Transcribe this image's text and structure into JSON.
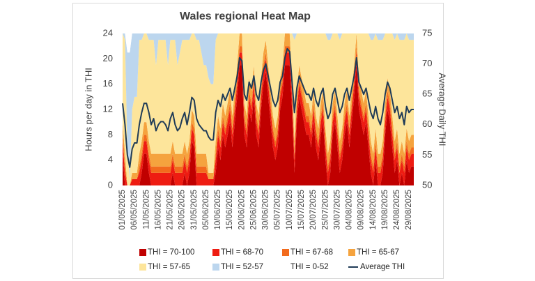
{
  "chart_data": {
    "type": "area",
    "title": "Wales regional Heat Map",
    "y_label": "Hours per day in THI",
    "y2_label": "Average Daily THI",
    "ylim": [
      0,
      24
    ],
    "yticks": [
      0,
      4,
      8,
      12,
      16,
      20,
      24
    ],
    "y2lim": [
      50,
      75
    ],
    "y2ticks": [
      50,
      55,
      60,
      65,
      70,
      75
    ],
    "categories": [
      "01/05/2025",
      null,
      null,
      null,
      null,
      "06/05/2025",
      null,
      null,
      null,
      null,
      "11/05/2025",
      null,
      null,
      null,
      null,
      "16/05/2025",
      null,
      null,
      null,
      null,
      "21/05/2025",
      null,
      null,
      null,
      null,
      "26/05/2025",
      null,
      null,
      null,
      null,
      "31/05/2025",
      null,
      null,
      null,
      null,
      "05/06/2025",
      null,
      null,
      null,
      null,
      "10/06/2025",
      null,
      null,
      null,
      null,
      "15/06/2025",
      null,
      null,
      null,
      null,
      "20/06/2025",
      null,
      null,
      null,
      null,
      "25/06/2025",
      null,
      null,
      null,
      null,
      "30/06/2025",
      null,
      null,
      null,
      null,
      "05/07/2025",
      null,
      null,
      null,
      null,
      "10/07/2025",
      null,
      null,
      null,
      null,
      "15/07/2025",
      null,
      null,
      null,
      null,
      "20/07/2025",
      null,
      null,
      null,
      null,
      "25/07/2025",
      null,
      null,
      null,
      null,
      "30/07/2025",
      null,
      null,
      null,
      null,
      "04/08/2025",
      null,
      null,
      null,
      null,
      "09/08/2025",
      null,
      null,
      null,
      null,
      "14/08/2025",
      null,
      null,
      null,
      null,
      "19/08/2025",
      null,
      null,
      null,
      null,
      "24/08/2025",
      null,
      null,
      null,
      null,
      "29/08/2025",
      null,
      null
    ],
    "series": [
      {
        "name": "THI = 70-100",
        "color": "#c00000",
        "values": [
          5,
          0,
          0,
          0,
          0,
          0,
          0,
          0,
          2,
          5,
          5,
          2,
          0,
          0,
          0,
          0,
          0,
          0,
          0,
          0,
          0,
          2,
          0,
          0,
          0,
          0,
          2,
          0,
          2,
          7,
          6,
          0,
          0,
          0,
          0,
          0,
          0,
          0,
          0,
          2,
          6,
          4,
          8,
          6,
          8,
          10,
          6,
          10,
          14,
          19,
          19,
          8,
          6,
          12,
          10,
          14,
          8,
          6,
          12,
          16,
          18,
          14,
          10,
          6,
          4,
          6,
          12,
          14,
          19,
          19,
          19,
          12,
          2,
          10,
          14,
          12,
          10,
          8,
          8,
          6,
          10,
          6,
          4,
          8,
          10,
          4,
          0,
          2,
          8,
          10,
          6,
          2,
          4,
          8,
          10,
          6,
          10,
          14,
          19,
          12,
          10,
          8,
          10,
          6,
          2,
          0,
          4,
          0,
          0,
          2,
          8,
          12,
          10,
          6,
          2,
          4,
          0,
          2,
          0,
          4,
          2,
          3,
          3
        ]
      },
      {
        "name": "THI = 68-70",
        "color": "#ee1c12",
        "values": [
          2,
          2,
          0,
          0,
          1,
          1,
          1,
          2,
          2,
          2,
          2,
          2,
          2,
          2,
          2,
          2,
          2,
          2,
          2,
          2,
          2,
          2,
          2,
          2,
          2,
          2,
          2,
          2,
          2,
          2,
          2,
          2,
          2,
          2,
          2,
          2,
          1,
          1,
          1,
          2,
          2,
          2,
          2,
          2,
          2,
          2,
          2,
          2,
          2,
          2,
          2,
          2,
          2,
          2,
          2,
          2,
          2,
          2,
          2,
          2,
          2,
          2,
          2,
          2,
          2,
          2,
          2,
          2,
          2,
          2,
          2,
          2,
          2,
          2,
          2,
          2,
          2,
          2,
          2,
          2,
          2,
          2,
          2,
          2,
          2,
          2,
          2,
          2,
          2,
          2,
          2,
          2,
          2,
          2,
          2,
          2,
          2,
          2,
          2,
          2,
          2,
          2,
          2,
          2,
          2,
          2,
          2,
          2,
          2,
          2,
          2,
          2,
          2,
          2,
          2,
          2,
          2,
          2,
          2,
          2,
          2,
          2,
          2
        ]
      },
      {
        "name": "THI = 67-68",
        "color": "#f26b1d",
        "values": [
          1,
          1,
          0,
          0,
          0,
          0,
          0,
          1,
          1,
          1,
          1,
          1,
          1,
          1,
          1,
          1,
          1,
          1,
          1,
          1,
          1,
          1,
          1,
          1,
          1,
          1,
          1,
          1,
          1,
          1,
          1,
          1,
          1,
          1,
          1,
          1,
          0,
          0,
          0,
          1,
          1,
          1,
          1,
          1,
          1,
          1,
          1,
          1,
          1,
          1,
          1,
          1,
          1,
          1,
          1,
          1,
          1,
          1,
          1,
          1,
          1,
          1,
          1,
          1,
          1,
          1,
          1,
          1,
          1,
          1,
          1,
          1,
          1,
          1,
          1,
          1,
          1,
          1,
          1,
          1,
          1,
          1,
          1,
          1,
          1,
          1,
          1,
          1,
          1,
          1,
          1,
          1,
          1,
          1,
          1,
          1,
          1,
          1,
          1,
          1,
          1,
          1,
          1,
          1,
          1,
          1,
          1,
          1,
          1,
          1,
          1,
          1,
          1,
          1,
          1,
          1,
          1,
          1,
          1,
          1,
          1,
          1,
          1
        ]
      },
      {
        "name": "THI = 65-67",
        "color": "#f5a33e",
        "values": [
          2,
          2,
          0,
          0,
          1,
          1,
          1,
          2,
          2,
          2,
          2,
          2,
          2,
          2,
          2,
          2,
          2,
          2,
          2,
          2,
          2,
          2,
          2,
          2,
          2,
          2,
          2,
          2,
          2,
          2,
          2,
          2,
          2,
          2,
          2,
          2,
          1,
          1,
          1,
          2,
          2,
          2,
          2,
          2,
          2,
          2,
          2,
          2,
          2,
          2,
          2,
          2,
          2,
          2,
          2,
          2,
          2,
          2,
          2,
          2,
          2,
          2,
          2,
          2,
          2,
          2,
          2,
          2,
          2,
          2,
          2,
          2,
          2,
          2,
          2,
          2,
          2,
          2,
          2,
          2,
          2,
          2,
          2,
          2,
          2,
          2,
          2,
          2,
          2,
          2,
          2,
          2,
          2,
          2,
          2,
          2,
          2,
          2,
          2,
          2,
          2,
          2,
          2,
          2,
          2,
          2,
          2,
          2,
          2,
          2,
          2,
          2,
          2,
          2,
          2,
          2,
          2,
          2,
          2,
          2,
          2,
          2,
          2
        ]
      },
      {
        "name": "THI = 57-65",
        "color": "#fde59b",
        "values": [
          14,
          18,
          6,
          1,
          10,
          12,
          12,
          18,
          16,
          14,
          14,
          16,
          18,
          18,
          14,
          18,
          18,
          18,
          18,
          14,
          18,
          16,
          18,
          14,
          16,
          18,
          16,
          18,
          16,
          12,
          13,
          18,
          18,
          16,
          14,
          14,
          15,
          14,
          14,
          16,
          13,
          15,
          11,
          13,
          11,
          9,
          13,
          9,
          5,
          0,
          0,
          11,
          13,
          7,
          9,
          5,
          11,
          13,
          7,
          3,
          1,
          5,
          9,
          13,
          15,
          13,
          7,
          5,
          0,
          0,
          0,
          7,
          16,
          9,
          5,
          7,
          9,
          11,
          11,
          13,
          9,
          13,
          15,
          11,
          9,
          15,
          18,
          16,
          11,
          9,
          13,
          16,
          15,
          11,
          9,
          13,
          9,
          5,
          0,
          7,
          9,
          11,
          9,
          13,
          16,
          18,
          15,
          18,
          18,
          16,
          11,
          7,
          9,
          13,
          16,
          15,
          18,
          16,
          18,
          15,
          16,
          15,
          15
        ]
      },
      {
        "name": "THI = 52-57",
        "color": "#bcd6ee",
        "values": [
          0,
          1,
          15,
          20,
          12,
          10,
          10,
          1,
          1,
          0,
          0,
          1,
          1,
          1,
          5,
          1,
          1,
          1,
          1,
          5,
          1,
          1,
          1,
          5,
          3,
          1,
          1,
          1,
          1,
          0,
          0,
          1,
          1,
          3,
          5,
          5,
          7,
          8,
          8,
          1,
          0,
          0,
          0,
          0,
          0,
          0,
          0,
          0,
          0,
          0,
          0,
          0,
          0,
          0,
          0,
          0,
          0,
          0,
          0,
          0,
          0,
          0,
          0,
          0,
          0,
          0,
          0,
          0,
          0,
          0,
          0,
          0,
          1,
          0,
          0,
          0,
          0,
          0,
          0,
          0,
          0,
          0,
          0,
          0,
          0,
          0,
          1,
          1,
          0,
          0,
          0,
          1,
          0,
          0,
          0,
          0,
          0,
          0,
          0,
          0,
          0,
          0,
          0,
          0,
          1,
          1,
          0,
          1,
          1,
          1,
          0,
          0,
          0,
          0,
          1,
          0,
          1,
          1,
          1,
          0,
          1,
          1,
          1
        ]
      },
      {
        "name": "THI = 0-52",
        "color": "#ffffff",
        "values": [
          0,
          0,
          3,
          3,
          0,
          0,
          0,
          0,
          0,
          0,
          0,
          0,
          0,
          0,
          0,
          0,
          0,
          0,
          0,
          0,
          0,
          0,
          0,
          0,
          0,
          0,
          0,
          0,
          0,
          0,
          0,
          0,
          0,
          0,
          0,
          0,
          0,
          0,
          0,
          0,
          0,
          0,
          0,
          0,
          0,
          0,
          0,
          0,
          0,
          0,
          0,
          0,
          0,
          0,
          0,
          0,
          0,
          0,
          0,
          0,
          0,
          0,
          0,
          0,
          0,
          0,
          0,
          0,
          0,
          0,
          0,
          0,
          0,
          0,
          0,
          0,
          0,
          0,
          0,
          0,
          0,
          0,
          0,
          0,
          0,
          0,
          0,
          0,
          0,
          0,
          0,
          0,
          0,
          0,
          0,
          0,
          0,
          0,
          0,
          0,
          0,
          0,
          0,
          0,
          0,
          0,
          0,
          0,
          0,
          0,
          0,
          0,
          0,
          0,
          0,
          0,
          0,
          0,
          0,
          0,
          0,
          0,
          0
        ]
      },
      {
        "name": "Average THI",
        "type": "line",
        "axis": "y2",
        "color": "#1f3b57",
        "values": [
          63.5,
          60,
          55,
          53,
          56,
          57,
          57,
          60,
          62,
          63.5,
          63.5,
          62,
          60,
          61,
          59,
          60,
          60.5,
          60.5,
          60,
          59,
          61,
          62,
          60,
          59,
          59.5,
          61,
          62,
          60,
          62,
          64.5,
          64,
          61,
          60,
          59.5,
          59,
          59,
          58,
          57.5,
          57.5,
          62,
          64,
          63,
          65,
          64,
          65,
          66,
          64,
          66,
          68,
          71,
          70.5,
          65,
          64,
          67,
          66,
          68,
          65,
          64,
          67,
          69,
          70,
          68,
          66,
          64,
          63,
          64,
          67,
          68,
          71,
          72.5,
          72,
          67,
          62,
          66,
          68,
          67,
          66,
          65,
          65,
          64,
          66,
          64,
          63,
          65,
          66,
          63,
          61,
          62,
          65,
          66,
          64,
          62,
          63,
          65,
          66,
          64,
          66,
          68,
          71,
          67,
          66,
          65,
          66,
          64,
          62,
          61,
          63,
          61,
          60,
          62,
          65,
          67,
          66,
          64,
          62,
          63,
          61,
          62,
          60,
          63,
          62,
          62.5,
          62.5
        ]
      }
    ]
  }
}
